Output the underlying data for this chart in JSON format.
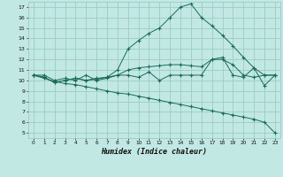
{
  "title": "",
  "xlabel": "Humidex (Indice chaleur)",
  "xlim": [
    -0.5,
    23.5
  ],
  "ylim": [
    4.5,
    17.5
  ],
  "yticks": [
    5,
    6,
    7,
    8,
    9,
    10,
    11,
    12,
    13,
    14,
    15,
    16,
    17
  ],
  "xticks": [
    0,
    1,
    2,
    3,
    4,
    5,
    6,
    7,
    8,
    9,
    10,
    11,
    12,
    13,
    14,
    15,
    16,
    17,
    18,
    19,
    20,
    21,
    22,
    23
  ],
  "bg_color": "#c2e8e4",
  "grid_color": "#9accc8",
  "line_color": "#1a6b5a",
  "series_big": [
    10.5,
    10.3,
    9.8,
    10.0,
    10.2,
    10.0,
    10.2,
    10.3,
    11.0,
    13.0,
    13.8,
    14.5,
    15.0,
    16.0,
    17.0,
    17.3,
    16.0,
    15.2,
    14.3,
    13.3,
    12.2,
    11.2,
    10.5,
    10.5
  ],
  "series_mid": [
    10.5,
    10.3,
    9.8,
    10.0,
    10.2,
    10.0,
    10.1,
    10.3,
    10.5,
    11.0,
    11.2,
    11.3,
    11.4,
    11.5,
    11.5,
    11.4,
    11.3,
    12.0,
    12.0,
    11.5,
    10.5,
    10.3,
    10.5,
    10.5
  ],
  "series_zigzag": [
    10.5,
    10.5,
    10.0,
    10.2,
    10.0,
    10.5,
    10.0,
    10.2,
    10.5,
    10.5,
    10.3,
    10.8,
    10.0,
    10.5,
    10.5,
    10.5,
    10.5,
    12.0,
    12.2,
    10.5,
    10.3,
    11.2,
    9.5,
    10.5
  ],
  "series_decline": [
    10.5,
    10.2,
    9.9,
    9.7,
    9.6,
    9.4,
    9.2,
    9.0,
    8.8,
    8.7,
    8.5,
    8.3,
    8.1,
    7.9,
    7.7,
    7.5,
    7.3,
    7.1,
    6.9,
    6.7,
    6.5,
    6.3,
    6.0,
    5.0
  ]
}
